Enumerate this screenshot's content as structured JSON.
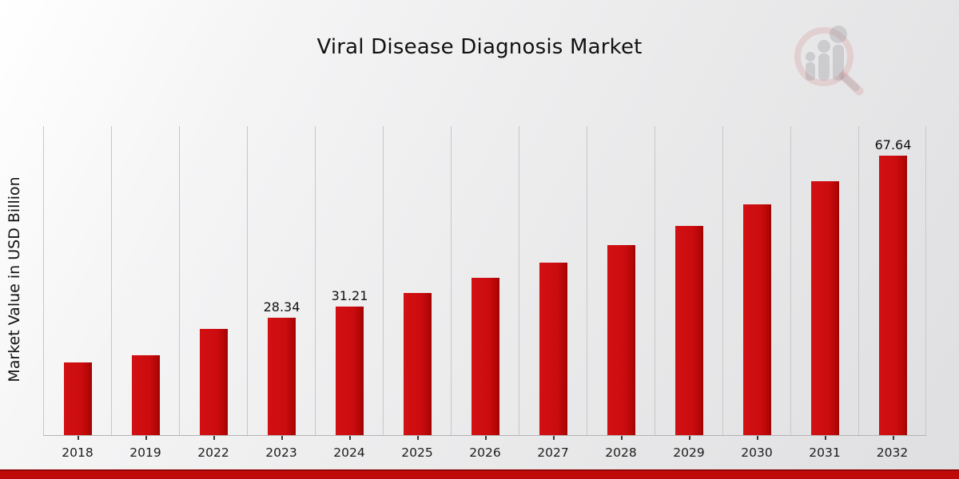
{
  "title": "Viral Disease Diagnosis Market",
  "watermark": {
    "icon": "magnifier-bar-chart-logo",
    "ring_color": "rgba(198,60,62,0.16)",
    "figure_color": "rgba(125,127,132,0.30)"
  },
  "colors": {
    "bar": "#cb0c0e",
    "bar_edge_shade": "#a00303",
    "gridline": "#c7c7c8",
    "axis_line": "#b3b3b3",
    "text": "#1c1c1c",
    "footer_top_edge": "#8f0606",
    "footer_band": "#c00a0a"
  },
  "chart_data": {
    "type": "bar",
    "title": "Viral Disease Diagnosis Market",
    "xlabel": "",
    "ylabel": "Market Value in USD Billion",
    "categories": [
      "2018",
      "2019",
      "2022",
      "2023",
      "2024",
      "2025",
      "2026",
      "2027",
      "2028",
      "2029",
      "2030",
      "2031",
      "2032"
    ],
    "values": [
      17.6,
      19.3,
      25.7,
      28.34,
      31.21,
      34.4,
      38.0,
      41.8,
      46.0,
      50.7,
      55.9,
      61.5,
      67.64
    ],
    "data_labels": [
      "",
      "",
      "",
      "28.34",
      "31.21",
      "",
      "",
      "",
      "",
      "",
      "",
      "",
      "67.64"
    ],
    "ylim": [
      0,
      75.6
    ],
    "y_axis_ticks_visible": false,
    "grid": "vertical-column-separators",
    "legend": "none",
    "bar_color": "#cb0c0e"
  }
}
